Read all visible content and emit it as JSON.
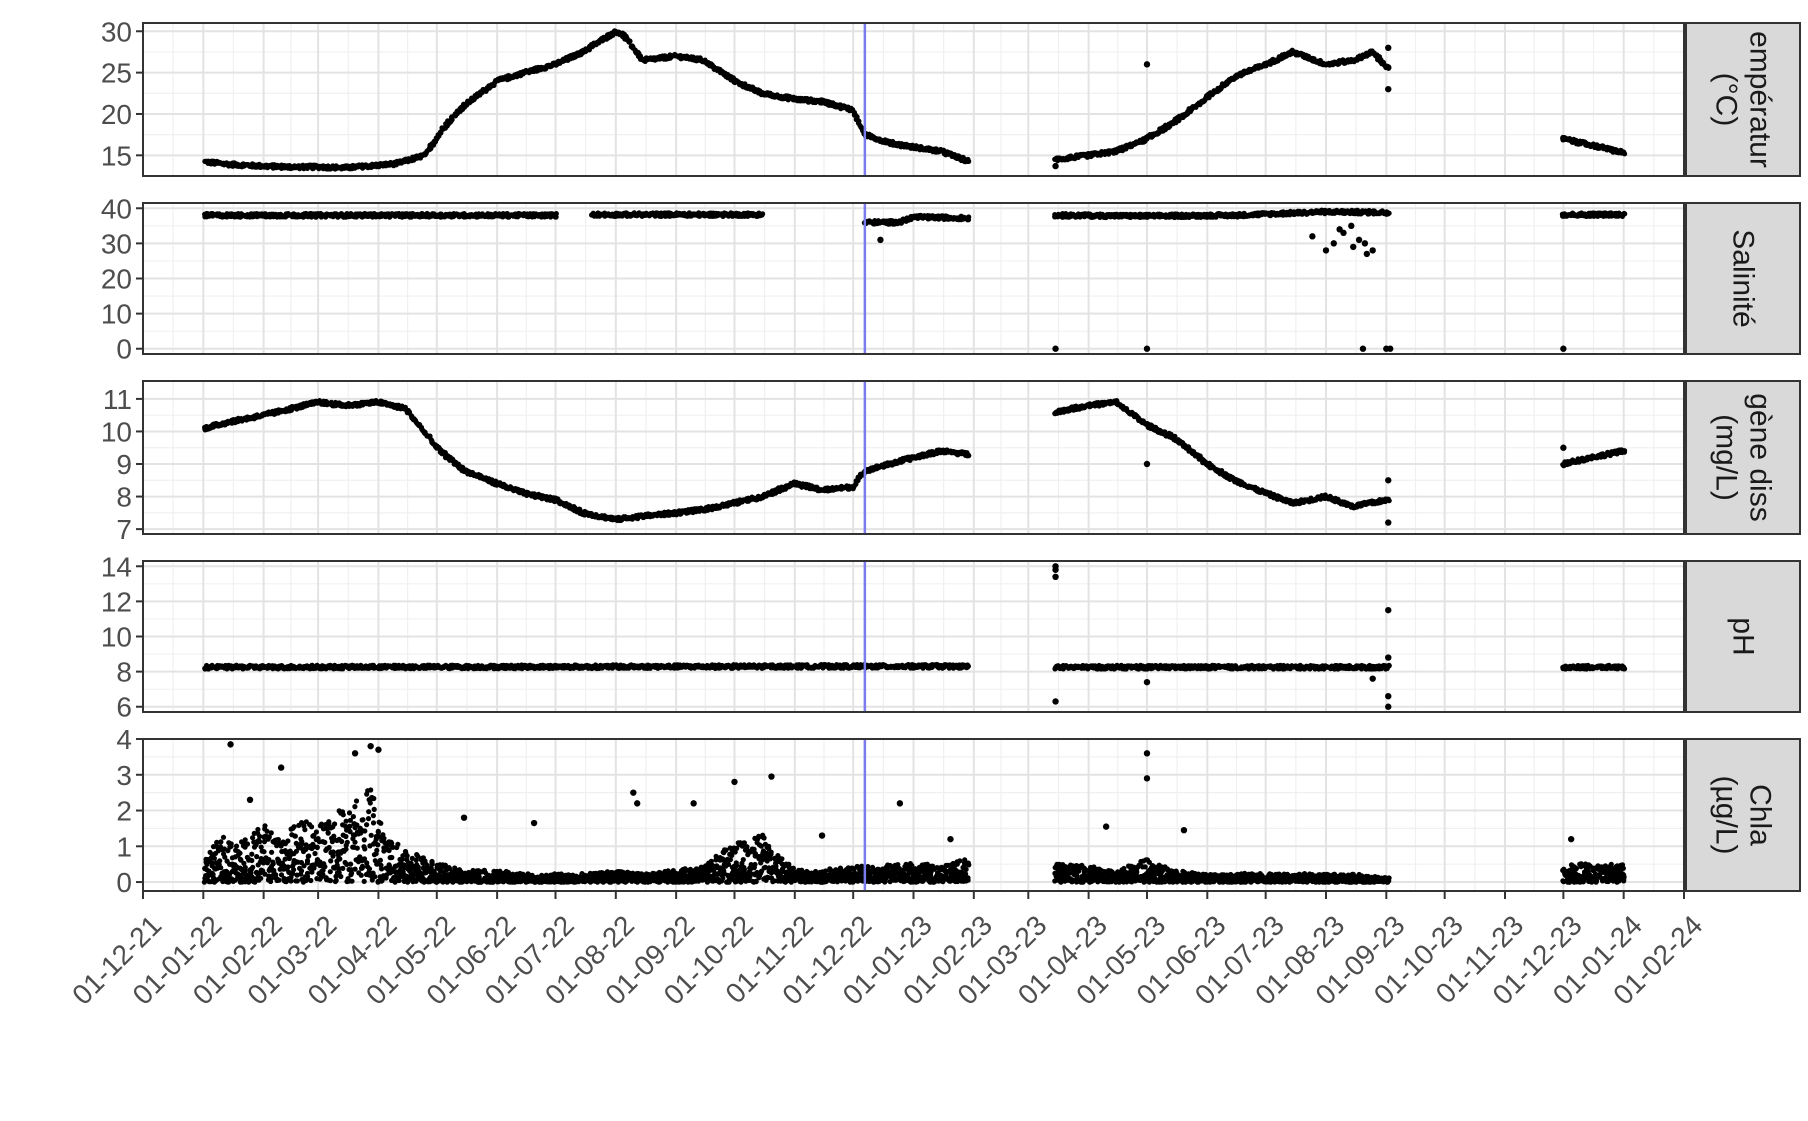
{
  "chart_data": {
    "type": "scatter",
    "layout": "faceted time series (stacked panels, shared x-axis)",
    "x_axis": {
      "type": "date",
      "date_format": "DD-MM-YY",
      "range": [
        "2021-12-01",
        "2024-02-01"
      ],
      "tick_labels": [
        "01-12-21",
        "01-01-22",
        "01-02-22",
        "01-03-22",
        "01-04-22",
        "01-05-22",
        "01-06-22",
        "01-07-22",
        "01-08-22",
        "01-09-22",
        "01-10-22",
        "01-11-22",
        "01-12-22",
        "01-01-23",
        "01-02-23",
        "01-03-23",
        "01-04-23",
        "01-05-23",
        "01-06-23",
        "01-07-23",
        "01-08-23",
        "01-09-23",
        "01-10-23",
        "01-11-23",
        "01-12-23",
        "01-01-24",
        "01-02-24"
      ],
      "tick_dates": [
        "2021-12-01",
        "2022-01-01",
        "2022-02-01",
        "2022-03-01",
        "2022-04-01",
        "2022-05-01",
        "2022-06-01",
        "2022-07-01",
        "2022-08-01",
        "2022-09-01",
        "2022-10-01",
        "2022-11-01",
        "2022-12-01",
        "2023-01-01",
        "2023-02-01",
        "2023-03-01",
        "2023-04-01",
        "2023-05-01",
        "2023-06-01",
        "2023-07-01",
        "2023-08-01",
        "2023-09-01",
        "2023-10-01",
        "2023-11-01",
        "2023-12-01",
        "2024-01-01",
        "2024-02-01"
      ]
    },
    "vertical_line": {
      "date": "2022-12-07",
      "color": "#7b7bef"
    },
    "grid": true,
    "marker_color": "#000000",
    "panels": [
      {
        "id": "temperature",
        "strip_label": [
          "empératur",
          "(°C)"
        ],
        "ylim": [
          12.5,
          31
        ],
        "yticks": [
          15,
          20,
          25,
          30
        ],
        "series": [
          {
            "x": [
              "2022-01-02",
              "2022-01-15",
              "2022-02-01",
              "2022-02-15",
              "2022-03-01",
              "2022-03-15",
              "2022-04-01",
              "2022-04-10",
              "2022-04-25",
              "2022-05-05",
              "2022-05-15",
              "2022-06-01",
              "2022-06-15",
              "2022-07-01",
              "2022-07-15",
              "2022-08-01",
              "2022-08-05",
              "2022-08-15",
              "2022-09-01",
              "2022-09-15",
              "2022-10-01",
              "2022-10-15",
              "2022-11-01",
              "2022-11-15",
              "2022-12-01",
              "2022-12-07",
              "2022-12-20",
              "2023-01-01",
              "2023-01-15",
              "2023-01-29"
            ],
            "y": [
              14.2,
              13.9,
              13.7,
              13.6,
              13.6,
              13.5,
              13.8,
              14.0,
              15.0,
              18.5,
              21.0,
              24.0,
              25.0,
              26.0,
              27.5,
              30.0,
              29.5,
              26.5,
              27.0,
              26.5,
              24.0,
              22.5,
              21.8,
              21.5,
              20.5,
              17.5,
              16.5,
              16.0,
              15.5,
              14.3
            ]
          },
          {
            "x": [
              "2023-03-15",
              "2023-04-01",
              "2023-04-15",
              "2023-05-01",
              "2023-05-15",
              "2023-06-01",
              "2023-06-15",
              "2023-07-01",
              "2023-07-15",
              "2023-08-01",
              "2023-08-15",
              "2023-08-25",
              "2023-09-02"
            ],
            "y": [
              14.5,
              15.0,
              15.5,
              17.0,
              19.0,
              22.0,
              24.5,
              26.0,
              27.5,
              26.0,
              26.5,
              27.5,
              25.5
            ]
          },
          {
            "x": [
              "2023-12-01",
              "2023-12-10",
              "2023-12-20",
              "2024-01-01"
            ],
            "y": [
              17.0,
              16.5,
              16.0,
              15.3
            ]
          }
        ],
        "outliers": {
          "x": [
            "2023-05-01",
            "2023-03-15",
            "2023-09-02",
            "2023-09-02"
          ],
          "y": [
            26.0,
            13.7,
            23.0,
            28.0
          ]
        }
      },
      {
        "id": "salinity",
        "strip_label": [
          "Salinité"
        ],
        "ylim": [
          -1.5,
          41.5
        ],
        "yticks": [
          0,
          10,
          20,
          30,
          40
        ],
        "series": [
          {
            "x": [
              "2022-01-02",
              "2022-07-01"
            ],
            "y": [
              38.0,
              38.0
            ]
          },
          {
            "x": [
              "2022-07-20",
              "2022-10-15"
            ],
            "y": [
              38.2,
              38.2
            ]
          },
          {
            "x": [
              "2022-12-07",
              "2022-12-25",
              "2023-01-01",
              "2023-01-29"
            ],
            "y": [
              36.0,
              36.0,
              37.5,
              37.2
            ]
          },
          {
            "x": [
              "2023-03-15",
              "2023-05-01",
              "2023-06-15",
              "2023-08-01",
              "2023-09-02"
            ],
            "y": [
              38.0,
              37.8,
              38.0,
              39.0,
              38.8
            ]
          },
          {
            "x": [
              "2023-12-01",
              "2024-01-01"
            ],
            "y": [
              38.2,
              38.2
            ]
          }
        ],
        "outliers": {
          "x": [
            "2023-03-15",
            "2023-05-01",
            "2023-08-20",
            "2023-09-01",
            "2023-09-03",
            "2023-12-01",
            "2022-12-15",
            "2023-07-25",
            "2023-08-01",
            "2023-08-05",
            "2023-08-10",
            "2023-08-15",
            "2023-08-18",
            "2023-08-22",
            "2023-08-25",
            "2023-08-08",
            "2023-08-14",
            "2023-08-21"
          ],
          "y": [
            0,
            0,
            0,
            0,
            0,
            0,
            31,
            32,
            28,
            30,
            33,
            29,
            31,
            27,
            28,
            34,
            35,
            30
          ]
        }
      },
      {
        "id": "dissolved_oxygen",
        "strip_label": [
          "gène diss",
          "(mg/L)"
        ],
        "ylim": [
          6.85,
          11.55
        ],
        "yticks": [
          7,
          8,
          9,
          10,
          11
        ],
        "series": [
          {
            "x": [
              "2022-01-02",
              "2022-01-15",
              "2022-02-01",
              "2022-02-15",
              "2022-03-01",
              "2022-03-15",
              "2022-04-01",
              "2022-04-15",
              "2022-05-01",
              "2022-05-15",
              "2022-06-01",
              "2022-06-15",
              "2022-07-01",
              "2022-07-15",
              "2022-08-01",
              "2022-08-15",
              "2022-09-01",
              "2022-09-15",
              "2022-10-01",
              "2022-10-15",
              "2022-11-01",
              "2022-11-15",
              "2022-12-01",
              "2022-12-07",
              "2022-12-20",
              "2023-01-01",
              "2023-01-15",
              "2023-01-29"
            ],
            "y": [
              10.1,
              10.3,
              10.5,
              10.7,
              10.9,
              10.8,
              10.9,
              10.7,
              9.5,
              8.8,
              8.4,
              8.1,
              7.9,
              7.5,
              7.3,
              7.4,
              7.5,
              7.6,
              7.8,
              8.0,
              8.4,
              8.2,
              8.3,
              8.8,
              9.0,
              9.2,
              9.4,
              9.3
            ]
          },
          {
            "x": [
              "2023-03-15",
              "2023-04-01",
              "2023-04-15",
              "2023-05-01",
              "2023-05-15",
              "2023-06-01",
              "2023-06-15",
              "2023-07-01",
              "2023-07-15",
              "2023-08-01",
              "2023-08-15",
              "2023-09-02"
            ],
            "y": [
              10.6,
              10.8,
              10.9,
              10.2,
              9.8,
              9.0,
              8.5,
              8.1,
              7.8,
              8.0,
              7.7,
              7.9
            ]
          },
          {
            "x": [
              "2023-12-01",
              "2023-12-15",
              "2024-01-01"
            ],
            "y": [
              9.0,
              9.2,
              9.4
            ]
          }
        ],
        "outliers": {
          "x": [
            "2023-05-01",
            "2023-12-01",
            "2023-09-02",
            "2023-09-02"
          ],
          "y": [
            9.0,
            9.5,
            7.2,
            8.5
          ]
        }
      },
      {
        "id": "ph",
        "strip_label": [
          "pH"
        ],
        "ylim": [
          5.7,
          14.3
        ],
        "yticks": [
          6,
          8,
          10,
          12,
          14
        ],
        "series": [
          {
            "x": [
              "2022-01-02",
              "2022-12-07",
              "2023-01-29"
            ],
            "y": [
              8.25,
              8.3,
              8.3
            ]
          },
          {
            "x": [
              "2023-03-15",
              "2023-09-02"
            ],
            "y": [
              8.25,
              8.25
            ]
          },
          {
            "x": [
              "2023-12-01",
              "2024-01-01"
            ],
            "y": [
              8.25,
              8.25
            ]
          }
        ],
        "outliers": {
          "x": [
            "2023-03-15",
            "2023-03-15",
            "2023-03-15",
            "2023-03-15",
            "2023-05-01",
            "2023-08-25",
            "2023-09-02",
            "2023-09-02",
            "2023-09-02",
            "2023-09-02"
          ],
          "y": [
            13.4,
            13.8,
            14.0,
            6.3,
            7.4,
            7.6,
            11.5,
            6.0,
            6.6,
            8.8
          ]
        }
      },
      {
        "id": "chla",
        "strip_label": [
          "Chla",
          "(µg/L)"
        ],
        "ylim": [
          -0.25,
          4.0
        ],
        "yticks": [
          0,
          1,
          2,
          3,
          4
        ],
        "series_type": "scatter",
        "series": [
          {
            "x": [
              "2022-01-02",
              "2022-01-10",
              "2022-01-20",
              "2022-02-01",
              "2022-02-10",
              "2022-02-20",
              "2022-03-01",
              "2022-03-10",
              "2022-03-20",
              "2022-03-28",
              "2022-04-05",
              "2022-04-15",
              "2022-05-01",
              "2022-05-15",
              "2022-06-01",
              "2022-06-15",
              "2022-07-01",
              "2022-07-15",
              "2022-08-01",
              "2022-08-15",
              "2022-09-01",
              "2022-09-15",
              "2022-10-01",
              "2022-10-15",
              "2022-11-01",
              "2022-11-15",
              "2022-12-01",
              "2022-12-15",
              "2023-01-01",
              "2023-01-15",
              "2023-01-29"
            ],
            "y": [
              0.6,
              1.2,
              1.0,
              1.5,
              1.3,
              1.6,
              1.4,
              1.8,
              2.0,
              2.5,
              1.2,
              0.8,
              0.5,
              0.3,
              0.3,
              0.2,
              0.2,
              0.2,
              0.3,
              0.2,
              0.3,
              0.4,
              1.0,
              1.2,
              0.3,
              0.3,
              0.4,
              0.4,
              0.5,
              0.4,
              0.6
            ]
          },
          {
            "x": [
              "2023-03-15",
              "2023-04-01",
              "2023-04-15",
              "2023-05-01",
              "2023-05-15",
              "2023-06-01",
              "2023-06-15",
              "2023-07-01",
              "2023-07-15",
              "2023-08-01",
              "2023-08-15",
              "2023-09-02"
            ],
            "y": [
              0.5,
              0.4,
              0.3,
              0.6,
              0.3,
              0.2,
              0.2,
              0.2,
              0.2,
              0.2,
              0.2,
              0.1
            ]
          },
          {
            "x": [
              "2023-12-01",
              "2023-12-10",
              "2023-12-20",
              "2024-01-01"
            ],
            "y": [
              0.4,
              0.5,
              0.4,
              0.5
            ]
          }
        ],
        "outliers": {
          "x": [
            "2022-01-15",
            "2022-03-20",
            "2022-03-28",
            "2022-04-01",
            "2022-02-10",
            "2022-01-25",
            "2022-05-15",
            "2022-06-20",
            "2022-08-10",
            "2022-08-12",
            "2022-09-10",
            "2022-10-01",
            "2022-10-20",
            "2022-12-25",
            "2023-01-20",
            "2023-05-01",
            "2023-05-01",
            "2023-04-10",
            "2023-05-20",
            "2022-11-15",
            "2023-12-05"
          ],
          "y": [
            3.85,
            3.6,
            3.8,
            3.7,
            3.2,
            2.3,
            1.8,
            1.65,
            2.5,
            2.2,
            2.2,
            2.8,
            2.95,
            2.2,
            1.2,
            3.6,
            2.9,
            1.55,
            1.45,
            1.3,
            1.2
          ]
        }
      }
    ]
  }
}
